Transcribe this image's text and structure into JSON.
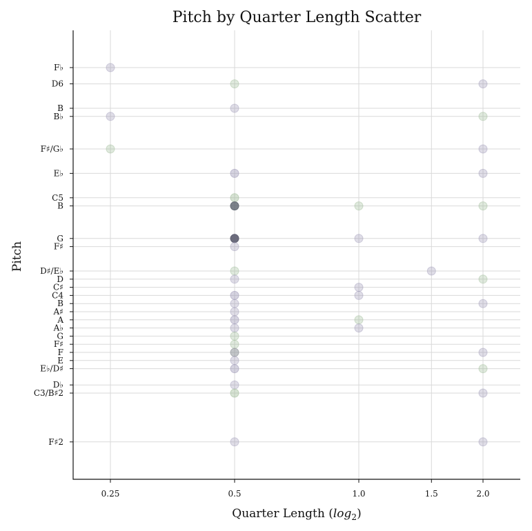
{
  "chart_data": {
    "type": "scatter",
    "title": "Pitch by Quarter Length Scatter",
    "xlabel": "Quarter Length (log2)",
    "ylabel": "Pitch",
    "x_scale": "log2",
    "grid": true,
    "x_ticks": [
      0.25,
      0.5,
      1.0,
      1.5,
      2.0
    ],
    "x_tick_labels": [
      "0.25",
      "0.5",
      "1.0",
      "1.5",
      "2.0"
    ],
    "y_ticks": [
      {
        "label": "F♭",
        "midi": 88
      },
      {
        "label": "D6",
        "midi": 86
      },
      {
        "label": "B",
        "midi": 83
      },
      {
        "label": "B♭",
        "midi": 82
      },
      {
        "label": "F♯/G♭",
        "midi": 78
      },
      {
        "label": "E♭",
        "midi": 75
      },
      {
        "label": "C5",
        "midi": 72
      },
      {
        "label": "B",
        "midi": 71
      },
      {
        "label": "G",
        "midi": 67
      },
      {
        "label": "F♯",
        "midi": 66
      },
      {
        "label": "D♯/E♭",
        "midi": 63
      },
      {
        "label": "D",
        "midi": 62
      },
      {
        "label": "C♯",
        "midi": 61
      },
      {
        "label": "C4",
        "midi": 60
      },
      {
        "label": "B",
        "midi": 59
      },
      {
        "label": "A♯",
        "midi": 58
      },
      {
        "label": "A",
        "midi": 57
      },
      {
        "label": "A♭",
        "midi": 56
      },
      {
        "label": "G",
        "midi": 55
      },
      {
        "label": "F♯",
        "midi": 54
      },
      {
        "label": "F",
        "midi": 53
      },
      {
        "label": "E",
        "midi": 52
      },
      {
        "label": "E♭/D♯",
        "midi": 51
      },
      {
        "label": "D♭",
        "midi": 49
      },
      {
        "label": "C3/B♯2",
        "midi": 48
      },
      {
        "label": "F♯2",
        "midi": 42
      }
    ],
    "points": [
      {
        "x": 0.25,
        "pitch": 88,
        "count": 1,
        "color": "#9b95b5"
      },
      {
        "x": 0.25,
        "pitch": 82,
        "count": 1,
        "color": "#9b95b5"
      },
      {
        "x": 0.25,
        "pitch": 78,
        "count": 1,
        "color": "#9dba95"
      },
      {
        "x": 0.5,
        "pitch": 86,
        "count": 1,
        "color": "#9dba95"
      },
      {
        "x": 0.5,
        "pitch": 83,
        "count": 1,
        "color": "#9b95b5"
      },
      {
        "x": 0.5,
        "pitch": 75,
        "count": 2,
        "color": "#9b95b5"
      },
      {
        "x": 0.5,
        "pitch": 72,
        "count": 2,
        "color": "#9dba95"
      },
      {
        "x": 0.5,
        "pitch": 71,
        "count": 6,
        "color": "#5f6670"
      },
      {
        "x": 0.5,
        "pitch": 67,
        "count": 7,
        "color": "#5f5f72"
      },
      {
        "x": 0.5,
        "pitch": 66,
        "count": 1,
        "color": "#9b95b5"
      },
      {
        "x": 0.5,
        "pitch": 63,
        "count": 1,
        "color": "#9dba95"
      },
      {
        "x": 0.5,
        "pitch": 62,
        "count": 1,
        "color": "#9b95b5"
      },
      {
        "x": 0.5,
        "pitch": 60,
        "count": 2,
        "color": "#9b95b5"
      },
      {
        "x": 0.5,
        "pitch": 59,
        "count": 1,
        "color": "#9b95b5"
      },
      {
        "x": 0.5,
        "pitch": 58,
        "count": 1,
        "color": "#9b95b5"
      },
      {
        "x": 0.5,
        "pitch": 57,
        "count": 2,
        "color": "#9b95b5"
      },
      {
        "x": 0.5,
        "pitch": 56,
        "count": 1,
        "color": "#9b95b5"
      },
      {
        "x": 0.5,
        "pitch": 55,
        "count": 1,
        "color": "#9dba95"
      },
      {
        "x": 0.5,
        "pitch": 54,
        "count": 1,
        "color": "#9dba95"
      },
      {
        "x": 0.5,
        "pitch": 53,
        "count": 3,
        "color": "#8a8f95"
      },
      {
        "x": 0.5,
        "pitch": 52,
        "count": 1,
        "color": "#9b95b5"
      },
      {
        "x": 0.5,
        "pitch": 51,
        "count": 2,
        "color": "#9b95b5"
      },
      {
        "x": 0.5,
        "pitch": 49,
        "count": 1,
        "color": "#9b95b5"
      },
      {
        "x": 0.5,
        "pitch": 48,
        "count": 2,
        "color": "#9dba95"
      },
      {
        "x": 0.5,
        "pitch": 42,
        "count": 1,
        "color": "#9b95b5"
      },
      {
        "x": 1.0,
        "pitch": 71,
        "count": 1,
        "color": "#9dba95"
      },
      {
        "x": 1.0,
        "pitch": 67,
        "count": 1,
        "color": "#9b95b5"
      },
      {
        "x": 1.0,
        "pitch": 61,
        "count": 1,
        "color": "#9b95b5"
      },
      {
        "x": 1.0,
        "pitch": 60,
        "count": 1,
        "color": "#9b95b5"
      },
      {
        "x": 1.0,
        "pitch": 57,
        "count": 1,
        "color": "#9dba95"
      },
      {
        "x": 1.0,
        "pitch": 56,
        "count": 1,
        "color": "#9b95b5"
      },
      {
        "x": 1.5,
        "pitch": 63,
        "count": 1,
        "color": "#9b95b5"
      },
      {
        "x": 2.0,
        "pitch": 86,
        "count": 1,
        "color": "#9b95b5"
      },
      {
        "x": 2.0,
        "pitch": 82,
        "count": 1,
        "color": "#9dba95"
      },
      {
        "x": 2.0,
        "pitch": 78,
        "count": 1,
        "color": "#9b95b5"
      },
      {
        "x": 2.0,
        "pitch": 75,
        "count": 1,
        "color": "#9b95b5"
      },
      {
        "x": 2.0,
        "pitch": 71,
        "count": 1,
        "color": "#9dba95"
      },
      {
        "x": 2.0,
        "pitch": 67,
        "count": 1,
        "color": "#9b95b5"
      },
      {
        "x": 2.0,
        "pitch": 62,
        "count": 1,
        "color": "#9dba95"
      },
      {
        "x": 2.0,
        "pitch": 59,
        "count": 1,
        "color": "#9b95b5"
      },
      {
        "x": 2.0,
        "pitch": 53,
        "count": 1,
        "color": "#9b95b5"
      },
      {
        "x": 2.0,
        "pitch": 51,
        "count": 1,
        "color": "#9dba95"
      },
      {
        "x": 2.0,
        "pitch": 48,
        "count": 1,
        "color": "#9b95b5"
      },
      {
        "x": 2.0,
        "pitch": 42,
        "count": 1,
        "color": "#9b95b5"
      }
    ]
  }
}
